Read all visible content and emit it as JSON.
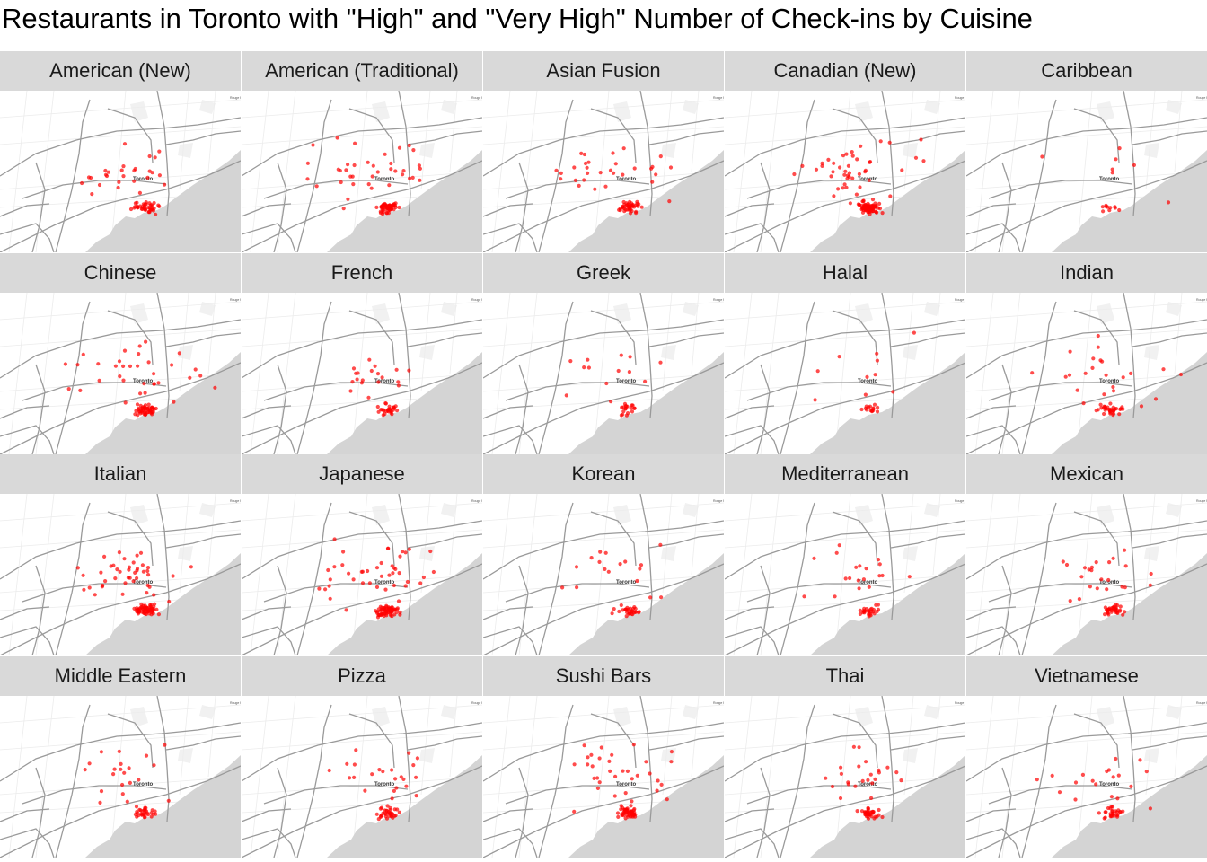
{
  "title": "Restaurants in Toronto with \"High\" and \"Very High\" Number of Check-ins by Cuisine",
  "map": {
    "city_label": "Toronto",
    "corner_label": "Rouge P",
    "water_color": "#d4d4d4",
    "road_color": "#9a9a9a",
    "minor_road_color": "#ececec",
    "point_color": "#ff0000"
  },
  "facets": [
    {
      "label": "American (New)",
      "density": 0.55,
      "spread": 0.35
    },
    {
      "label": "American (Traditional)",
      "density": 0.8,
      "spread": 0.6
    },
    {
      "label": "Asian Fusion",
      "density": 0.6,
      "spread": 0.55
    },
    {
      "label": "Canadian (New)",
      "density": 1.0,
      "spread": 0.6
    },
    {
      "label": "Caribbean",
      "density": 0.08,
      "spread": 0.7
    },
    {
      "label": "Chinese",
      "density": 0.7,
      "spread": 0.8
    },
    {
      "label": "French",
      "density": 0.35,
      "spread": 0.2
    },
    {
      "label": "Greek",
      "density": 0.22,
      "spread": 0.35
    },
    {
      "label": "Halal",
      "density": 0.15,
      "spread": 0.7
    },
    {
      "label": "Indian",
      "density": 0.45,
      "spread": 0.7
    },
    {
      "label": "Italian",
      "density": 0.9,
      "spread": 0.5
    },
    {
      "label": "Japanese",
      "density": 0.9,
      "spread": 0.65
    },
    {
      "label": "Korean",
      "density": 0.35,
      "spread": 0.75
    },
    {
      "label": "Mediterranean",
      "density": 0.35,
      "spread": 0.5
    },
    {
      "label": "Mexican",
      "density": 0.45,
      "spread": 0.55
    },
    {
      "label": "Middle Eastern",
      "density": 0.4,
      "spread": 0.7
    },
    {
      "label": "Pizza",
      "density": 0.45,
      "spread": 0.55
    },
    {
      "label": "Sushi Bars",
      "density": 0.7,
      "spread": 0.6
    },
    {
      "label": "Thai",
      "density": 0.45,
      "spread": 0.4
    },
    {
      "label": "Vietnamese",
      "density": 0.35,
      "spread": 0.6
    }
  ]
}
